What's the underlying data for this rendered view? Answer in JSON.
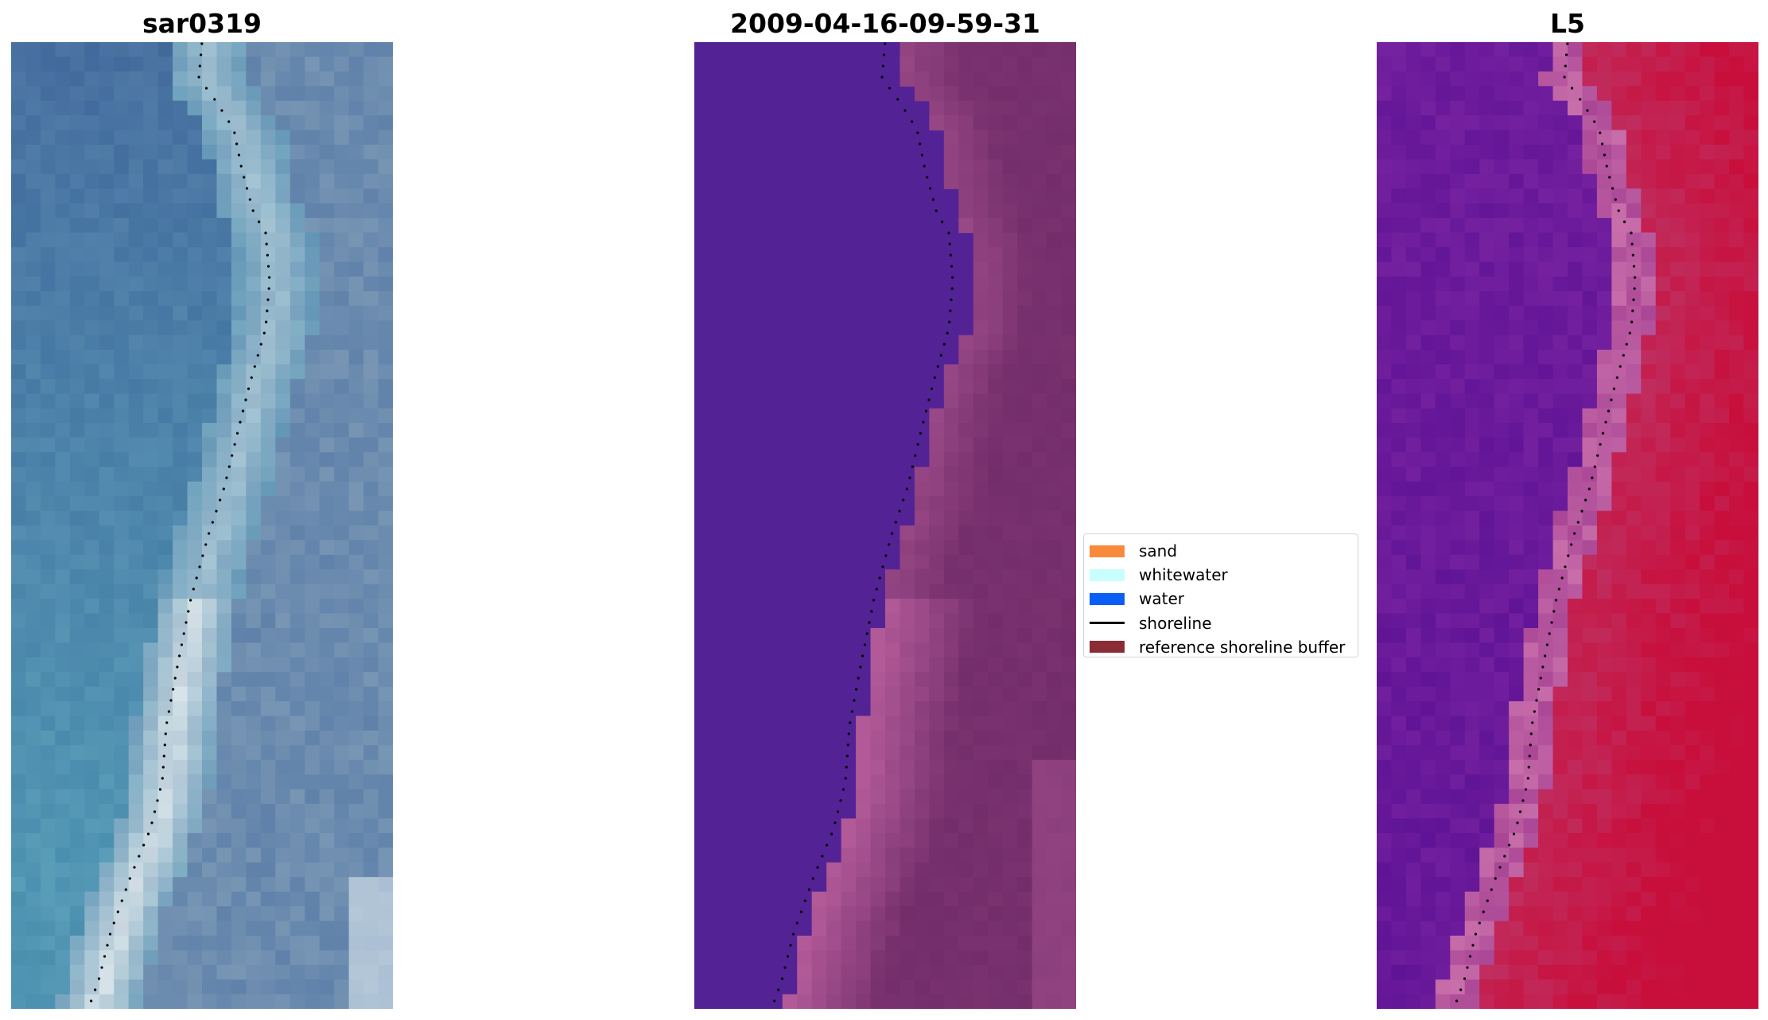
{
  "panels": [
    {
      "id": "rgb",
      "title": "sar0319"
    },
    {
      "id": "classification",
      "title": "2009-04-16-09-59-31"
    },
    {
      "id": "index",
      "title": "L5"
    }
  ],
  "legend": {
    "items": [
      {
        "label": "sand",
        "color": "#f98a3c",
        "kind": "patch"
      },
      {
        "label": "whitewater",
        "color": "#c9feff",
        "kind": "patch"
      },
      {
        "label": "water",
        "color": "#0a5ef5",
        "kind": "patch"
      },
      {
        "label": "shoreline",
        "color": "#000000",
        "kind": "line"
      },
      {
        "label": "reference shoreline buffer",
        "color": "#8b2b33",
        "kind": "patch"
      }
    ]
  },
  "colors": {
    "classification_water": "#532396",
    "classification_buffer": "#722d6a",
    "classification_buffer_bright": "#b25a98"
  }
}
